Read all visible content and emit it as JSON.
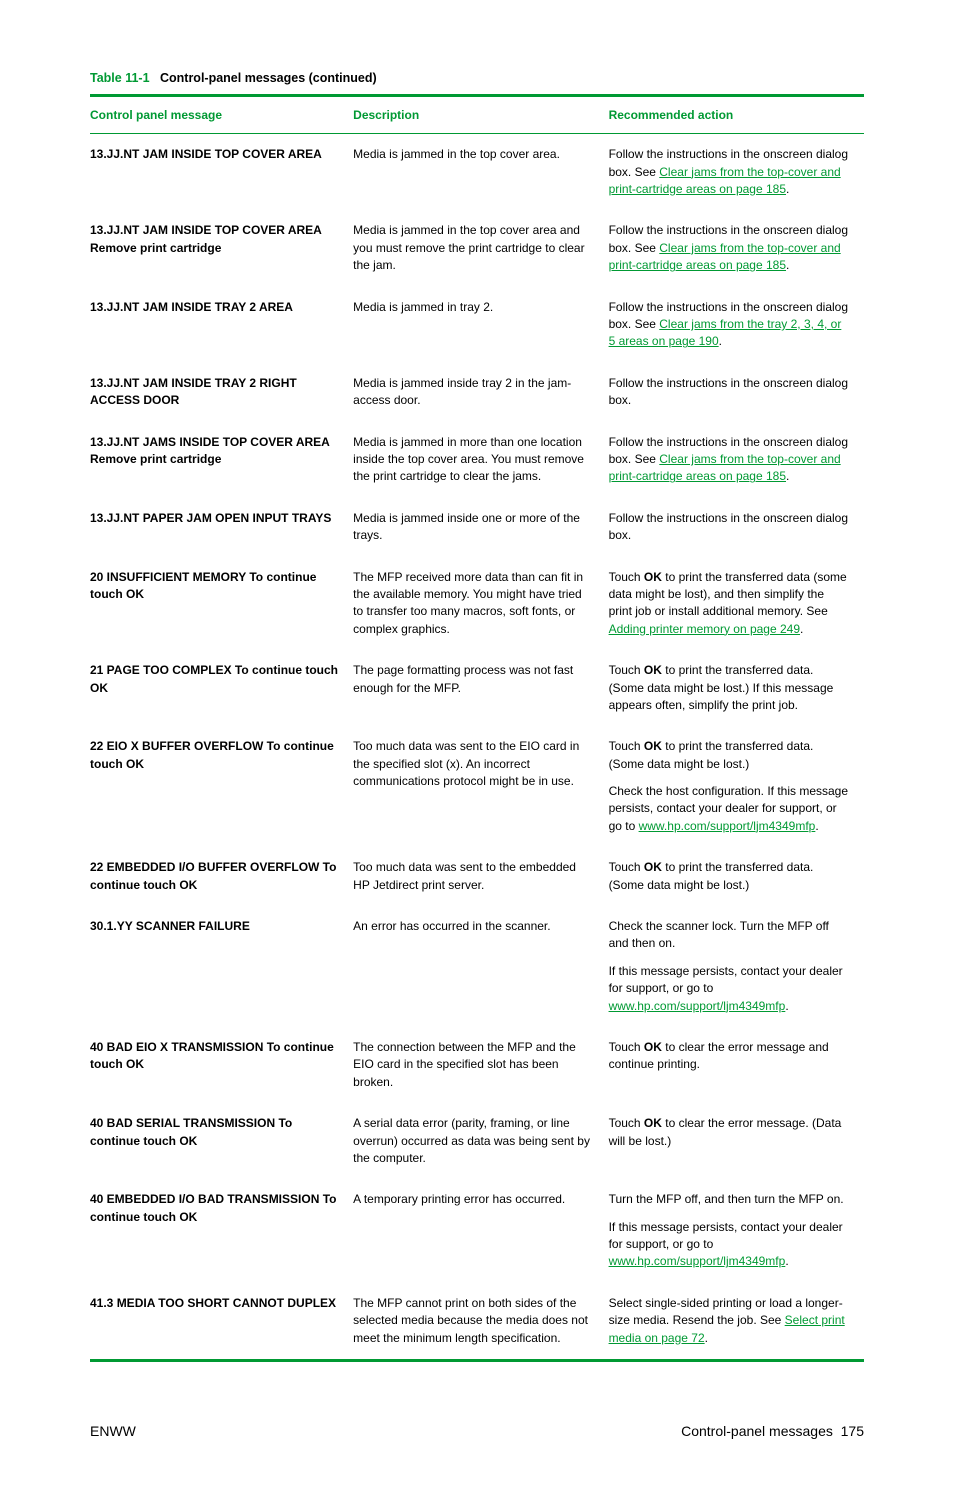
{
  "caption_prefix": "Table 11-1",
  "caption_suffix": "Control-panel messages (continued)",
  "headers": {
    "c1": "Control panel message",
    "c2": "Description",
    "c3": "Recommended action"
  },
  "links": {
    "topcover": "Clear jams from the top-cover and print-cartridge areas on page 185",
    "tray2": "Clear jams from the tray 2, 3, 4, or 5 areas on page 190",
    "addmem": "Adding printer memory on page 249",
    "support_full": "www.hp.com/support/ljm4349mfp",
    "support_short": "www.hp.com/support/ljm4349mfp",
    "selectprint": "Select print media on page 72"
  },
  "rows": [
    {
      "msg": "13.JJ.NT JAM INSIDE TOP COVER AREA",
      "desc": "Media is jammed in the top cover area.",
      "act_pre": "Follow the instructions in the onscreen dialog box. See ",
      "act_link": "topcover",
      "act_post": "."
    },
    {
      "msg": "13.JJ.NT JAM INSIDE TOP COVER AREA Remove print cartridge",
      "desc": "Media is jammed in the top cover area and you must remove the print cartridge to clear the jam.",
      "act_pre": "Follow the instructions in the onscreen dialog box. See ",
      "act_link": "topcover",
      "act_post": "."
    },
    {
      "msg": "13.JJ.NT JAM INSIDE TRAY 2 AREA",
      "desc": "Media is jammed in tray 2.",
      "act_pre": "Follow the instructions in the onscreen dialog box. See ",
      "act_link": "tray2",
      "act_post": "."
    },
    {
      "msg": "13.JJ.NT JAM INSIDE TRAY 2 RIGHT ACCESS DOOR",
      "desc": "Media is jammed inside tray 2 in the jam-access door.",
      "act_plain": "Follow the instructions in the onscreen dialog box."
    },
    {
      "msg": "13.JJ.NT JAMS INSIDE TOP COVER AREA Remove print cartridge",
      "desc": "Media is jammed in more than one location inside the top cover area. You must remove the print cartridge to clear the jams.",
      "act_pre": "Follow the instructions in the onscreen dialog box. See ",
      "act_link": "topcover",
      "act_post": "."
    },
    {
      "msg": "13.JJ.NT PAPER JAM OPEN INPUT TRAYS",
      "desc": "Media is jammed inside one or more of the trays.",
      "act_plain": "Follow the instructions in the onscreen dialog box."
    },
    {
      "msg": "20 INSUFFICIENT MEMORY To continue touch OK",
      "desc": "The MFP received more data than can fit in the available memory. You might have tried to transfer too many macros, soft fonts, or complex graphics.",
      "act_ok_pre": "Touch ",
      "act_ok_bold": "OK",
      "act_ok_mid": " to print the transferred data (some data might be lost), and then simplify the print job or install additional memory. See ",
      "act_link": "addmem",
      "act_post": "."
    },
    {
      "msg": "21 PAGE TOO COMPLEX To continue touch OK",
      "desc": "The page formatting process was not fast enough for the MFP.",
      "act_ok_pre": "Touch ",
      "act_ok_bold": "OK",
      "act_ok_post": " to print the transferred data. (Some data might be lost.) If this message appears often, simplify the print job."
    },
    {
      "msg": "22 EIO X BUFFER OVERFLOW To continue touch OK",
      "desc": "Too much data was sent to the EIO card in the specified slot (x). An incorrect communications protocol might be in use.",
      "act_multi": [
        {
          "ok_pre": "Touch ",
          "ok_bold": "OK",
          "ok_post": " to print the transferred data. (Some data might be lost.)"
        },
        {
          "pre": "Check the host configuration. If this message persists, contact your dealer for support, or go to ",
          "link": "support_full",
          "post": "."
        }
      ]
    },
    {
      "msg": "22 EMBEDDED I/O BUFFER OVERFLOW To continue touch OK",
      "desc": "Too much data was sent to the embedded HP Jetdirect print server.",
      "act_ok_pre": "Touch ",
      "act_ok_bold": "OK",
      "act_ok_post": " to print the transferred data. (Some data might be lost.)"
    },
    {
      "msg": "30.1.YY SCANNER FAILURE",
      "desc": "An error has occurred in the scanner.",
      "act_multi": [
        {
          "plain": "Check the scanner lock. Turn the MFP off and then on."
        },
        {
          "pre": "If this message persists, contact your dealer for support, or go to ",
          "link": "support_short",
          "post": "."
        }
      ]
    },
    {
      "msg": "40 BAD EIO X TRANSMISSION To continue touch OK",
      "desc": "The connection between the MFP and the EIO card in the specified slot has been broken.",
      "act_ok_pre": "Touch ",
      "act_ok_bold": "OK",
      "act_ok_post": " to clear the error message and continue printing."
    },
    {
      "msg": "40 BAD SERIAL TRANSMISSION To continue touch OK",
      "desc": "A serial data error (parity, framing, or line overrun) occurred as data was being sent by the computer.",
      "act_ok_pre": "Touch ",
      "act_ok_bold": "OK",
      "act_ok_post": " to clear the error message. (Data will be lost.)"
    },
    {
      "msg": "40 EMBEDDED I/O BAD TRANSMISSION To continue touch OK",
      "desc": "A temporary printing error has occurred.",
      "act_multi": [
        {
          "plain": "Turn the MFP off, and then turn the MFP on."
        },
        {
          "pre": "If this message persists, contact your dealer for support, or go to ",
          "link": "support_short",
          "post": "."
        }
      ]
    },
    {
      "msg": "41.3 MEDIA TOO SHORT CANNOT DUPLEX",
      "desc": "The MFP cannot print on both sides of the selected media because the media does not meet the minimum length specification.",
      "act_pre": "Select single-sided printing or load a longer-size media. Resend the job. See ",
      "act_link": "selectprint",
      "act_post": "."
    }
  ],
  "footer": {
    "left": "ENWW",
    "right_label": "Control-panel messages",
    "right_page": "175"
  }
}
